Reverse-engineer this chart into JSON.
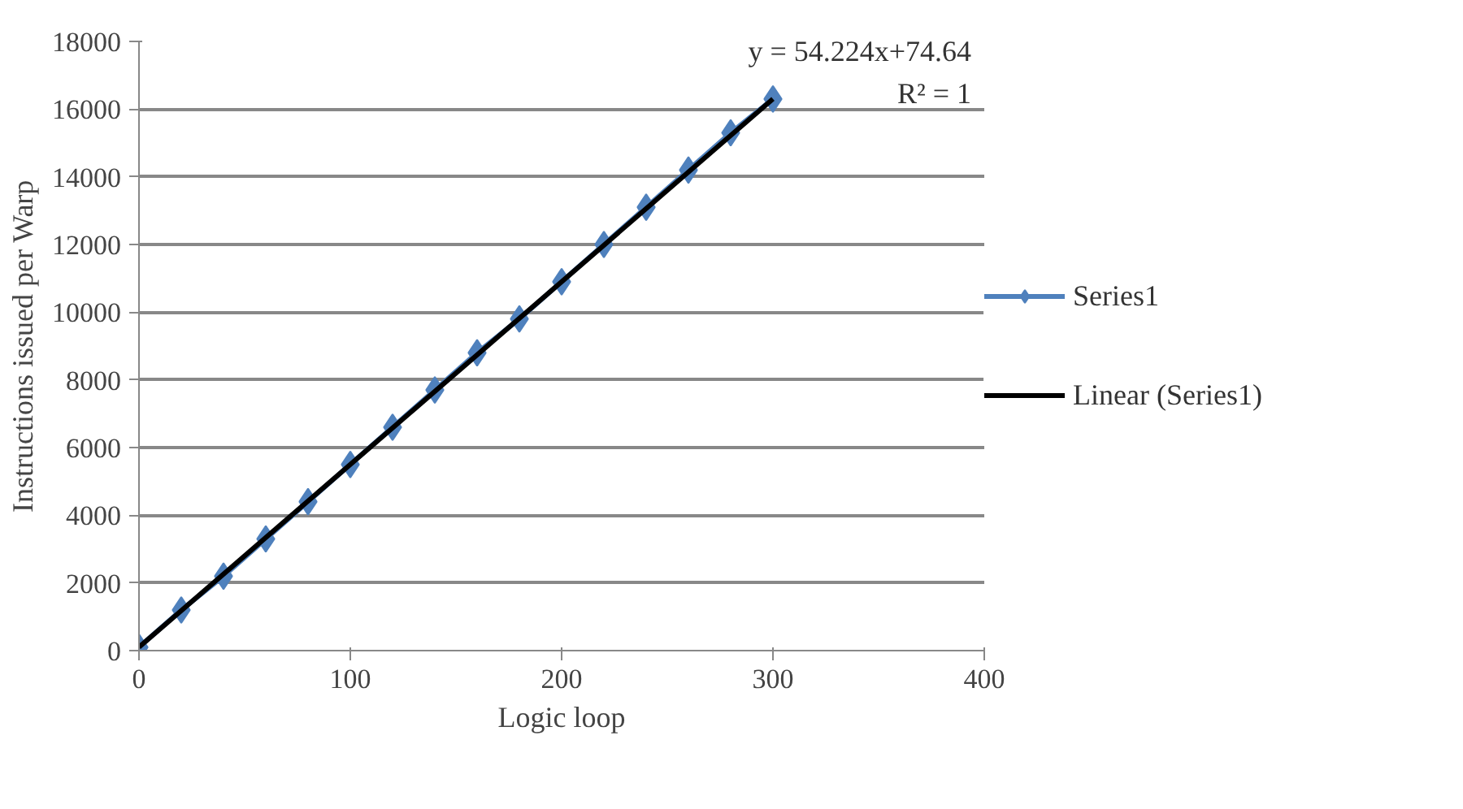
{
  "chart_data": {
    "type": "line",
    "xlabel": "Logic loop",
    "ylabel": "Instructions issued per Warp",
    "x": [
      0,
      20,
      40,
      60,
      80,
      100,
      120,
      140,
      160,
      180,
      200,
      220,
      240,
      260,
      280,
      300
    ],
    "series": [
      {
        "name": "Series1",
        "color": "#4f81bd",
        "marker": "diamond",
        "values": [
          100,
          1200,
          2200,
          3300,
          4400,
          5500,
          6600,
          7700,
          8800,
          9800,
          10900,
          12000,
          13100,
          14200,
          15300,
          16300
        ]
      },
      {
        "name": "Linear (Series1)",
        "type": "line",
        "color": "#000000",
        "marker": "none",
        "x": [
          0,
          300
        ],
        "values": [
          100,
          16300
        ]
      }
    ],
    "xlim": [
      0,
      400
    ],
    "xticks": [
      0,
      100,
      200,
      300,
      400
    ],
    "ylim": [
      0,
      18000
    ],
    "yticks": [
      0,
      2000,
      4000,
      6000,
      8000,
      10000,
      12000,
      14000,
      16000,
      18000
    ],
    "grid": "y",
    "legend": "right",
    "line_style": "solid",
    "annotations": [
      "y = 54.224x+74.64",
      "R² = 1"
    ]
  }
}
